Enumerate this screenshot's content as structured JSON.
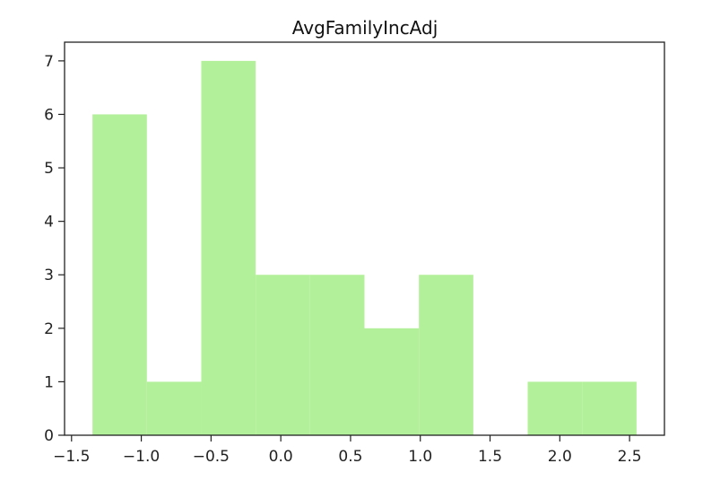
{
  "chart_data": {
    "type": "bar",
    "title": "AvgFamilyIncAdj",
    "xlabel": "",
    "ylabel": "",
    "bar_color": "#b3f09a",
    "bins": [
      {
        "x0": -1.35,
        "x1": -0.96,
        "count": 6
      },
      {
        "x0": -0.96,
        "x1": -0.57,
        "count": 1
      },
      {
        "x0": -0.57,
        "x1": -0.18,
        "count": 7
      },
      {
        "x0": -0.18,
        "x1": 0.21,
        "count": 3
      },
      {
        "x0": 0.21,
        "x1": 0.6,
        "count": 3
      },
      {
        "x0": 0.6,
        "x1": 0.99,
        "count": 2
      },
      {
        "x0": 0.99,
        "x1": 1.38,
        "count": 3
      },
      {
        "x0": 1.38,
        "x1": 1.77,
        "count": 0
      },
      {
        "x0": 1.77,
        "x1": 2.16,
        "count": 1
      },
      {
        "x0": 2.16,
        "x1": 2.55,
        "count": 1
      }
    ],
    "xlim": [
      -1.55,
      2.75
    ],
    "ylim": [
      0,
      7.35
    ],
    "xticks": [
      {
        "value": -1.5,
        "label": "−1.5"
      },
      {
        "value": -1.0,
        "label": "−1.0"
      },
      {
        "value": -0.5,
        "label": "−0.5"
      },
      {
        "value": 0.0,
        "label": "0.0"
      },
      {
        "value": 0.5,
        "label": "0.5"
      },
      {
        "value": 1.0,
        "label": "1.0"
      },
      {
        "value": 1.5,
        "label": "1.5"
      },
      {
        "value": 2.0,
        "label": "2.0"
      },
      {
        "value": 2.5,
        "label": "2.5"
      }
    ],
    "yticks": [
      {
        "value": 0,
        "label": "0"
      },
      {
        "value": 1,
        "label": "1"
      },
      {
        "value": 2,
        "label": "2"
      },
      {
        "value": 3,
        "label": "3"
      },
      {
        "value": 4,
        "label": "4"
      },
      {
        "value": 5,
        "label": "5"
      },
      {
        "value": 6,
        "label": "6"
      },
      {
        "value": 7,
        "label": "7"
      }
    ],
    "grid": false,
    "legend": "none"
  }
}
